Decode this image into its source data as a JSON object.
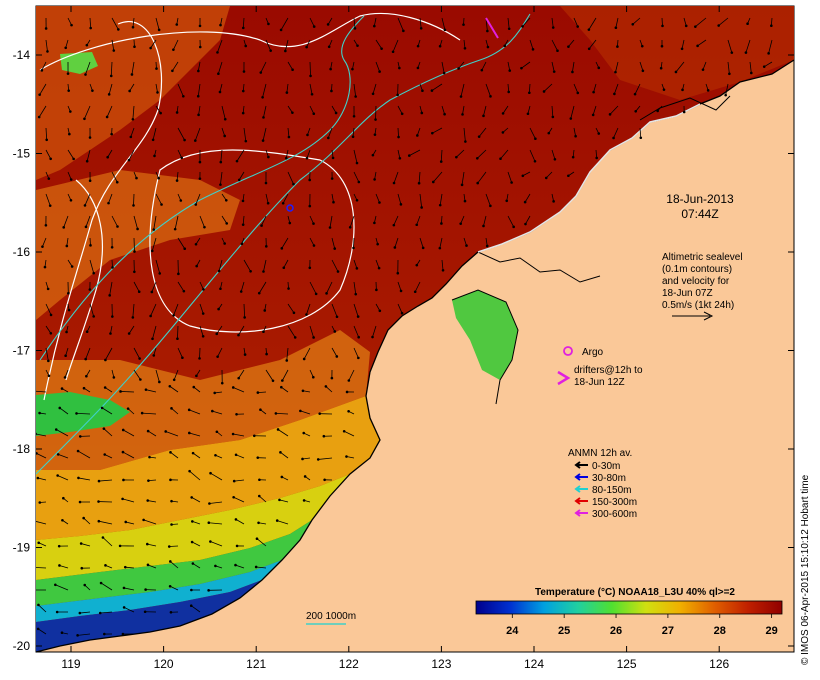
{
  "map": {
    "region": "Kimberley coast, north-western Australia",
    "lon_ticks": [
      "119",
      "120",
      "121",
      "122",
      "123",
      "124",
      "125",
      "126"
    ],
    "lat_ticks": [
      "-14",
      "-15",
      "-16",
      "-17",
      "-18",
      "-19",
      "-20"
    ],
    "colors": {
      "land": "#fac898",
      "sst_hot": "#9a0a00",
      "sst_warm": "#c84a08",
      "sst_mid": "#e89a10",
      "sst_cool": "#30c040",
      "sst_cold": "#1030a0",
      "coastline": "#000000",
      "contour_sealevel": "#ffffff",
      "contour_200_1000m": "#40d0c8"
    }
  },
  "date_label": {
    "line1": "18-Jun-2013",
    "line2": "07:44Z"
  },
  "altimetry_note": {
    "line1": "Altimetric sealevel",
    "line2": "(0.1m contours)",
    "line3": "and velocity for",
    "line4": "18-Jun 07Z",
    "line5": "0.5m/s (1kt 24h)"
  },
  "argo_legend": {
    "label": "Argo",
    "color": "#e020e0"
  },
  "drifter_legend": {
    "line1": "drifters@12h to",
    "line2": "18-Jun 12Z",
    "color": "#e020e0"
  },
  "anmn_legend": {
    "title": "ANMN 12h av.",
    "items": [
      {
        "label": "0-30m",
        "color": "#000000"
      },
      {
        "label": "30-80m",
        "color": "#0000e0"
      },
      {
        "label": "80-150m",
        "color": "#20d0d0"
      },
      {
        "label": "150-300m",
        "color": "#e00000"
      },
      {
        "label": "300-600m",
        "color": "#e020e0"
      }
    ]
  },
  "depth_contour_legend": {
    "label": "200  1000m"
  },
  "colorbar": {
    "title": "Temperature (°C) NOAA18_L3U 40% ql>=2",
    "ticks": [
      "24",
      "25",
      "26",
      "27",
      "28",
      "29"
    ],
    "range": [
      23.3,
      29.2
    ],
    "gradient": [
      "#00008c",
      "#0030d0",
      "#00a0e0",
      "#20d0a0",
      "#50e030",
      "#d0e010",
      "#f0b000",
      "#e06000",
      "#c02000",
      "#900000"
    ]
  },
  "credit": "© IMOS 06-Apr-2015 15:10:12 Hobart time"
}
